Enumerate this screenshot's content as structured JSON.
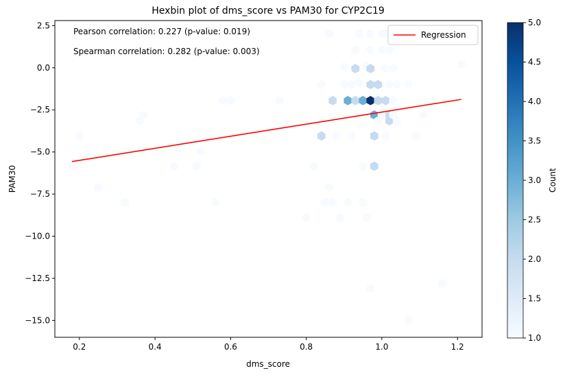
{
  "chart_data": {
    "type": "heatmap",
    "subtype": "hexbin",
    "title": "Hexbin plot of dms_score vs PAM30 for CYP2C19",
    "xlabel": "dms_score",
    "ylabel": "PAM30",
    "xlim": [
      0.135,
      1.265
    ],
    "ylim": [
      -16.0,
      2.8
    ],
    "xticks": [
      0.2,
      0.4,
      0.6,
      0.8,
      1.0,
      1.2
    ],
    "xtick_labels": [
      "0.2",
      "0.4",
      "0.6",
      "0.8",
      "1.0",
      "1.2"
    ],
    "yticks": [
      2.5,
      0.0,
      -2.5,
      -5.0,
      -7.5,
      -10.0,
      -12.5,
      -15.0
    ],
    "ytick_labels": [
      "2.5",
      "0.0",
      "−2.5",
      "−5.0",
      "−7.5",
      "−10.0",
      "−12.5",
      "−15.0"
    ],
    "annotations": [
      "Pearson correlation: 0.227 (p-value: 0.019)",
      "Spearman correlation: 0.282 (p-value: 0.003)"
    ],
    "legend": {
      "entries": [
        "Regression"
      ],
      "placement": "top-right"
    },
    "regression": {
      "x": [
        0.18,
        1.21
      ],
      "y": [
        -5.57,
        -1.88
      ],
      "color": "#ff0000"
    },
    "colorbar": {
      "label": "Count",
      "range": [
        1.0,
        5.0
      ],
      "ticks": [
        1.0,
        1.5,
        2.0,
        2.5,
        3.0,
        3.5,
        4.0,
        4.5,
        5.0
      ],
      "tick_labels": [
        "1.0",
        "1.5",
        "2.0",
        "2.5",
        "3.0",
        "3.5",
        "4.0",
        "4.5",
        "5.0"
      ],
      "colormap": "Blues"
    },
    "grid": false,
    "hexbins": [
      {
        "x": 0.18,
        "y": -5.85,
        "count": 1
      },
      {
        "x": 0.2,
        "y": -4.05,
        "count": 1
      },
      {
        "x": 0.25,
        "y": -7.1,
        "count": 1
      },
      {
        "x": 0.32,
        "y": -8.0,
        "count": 1
      },
      {
        "x": 0.36,
        "y": -3.15,
        "count": 1
      },
      {
        "x": 0.37,
        "y": -2.8,
        "count": 1
      },
      {
        "x": 0.45,
        "y": -5.85,
        "count": 1
      },
      {
        "x": 0.51,
        "y": -5.85,
        "count": 1
      },
      {
        "x": 0.52,
        "y": -4.95,
        "count": 1
      },
      {
        "x": 0.56,
        "y": -8.0,
        "count": 1
      },
      {
        "x": 0.58,
        "y": -1.95,
        "count": 1
      },
      {
        "x": 0.6,
        "y": -1.95,
        "count": 1
      },
      {
        "x": 0.73,
        "y": -1.95,
        "count": 1
      },
      {
        "x": 0.8,
        "y": -8.9,
        "count": 1
      },
      {
        "x": 0.82,
        "y": -5.85,
        "count": 1
      },
      {
        "x": 0.84,
        "y": -1.0,
        "count": 1
      },
      {
        "x": 0.84,
        "y": -4.05,
        "count": 2
      },
      {
        "x": 0.85,
        "y": -8.0,
        "count": 1
      },
      {
        "x": 0.86,
        "y": 2.0,
        "count": 1
      },
      {
        "x": 0.86,
        "y": -7.1,
        "count": 1
      },
      {
        "x": 0.87,
        "y": -1.95,
        "count": 2
      },
      {
        "x": 0.87,
        "y": -8.0,
        "count": 1
      },
      {
        "x": 0.88,
        "y": -4.05,
        "count": 1
      },
      {
        "x": 0.89,
        "y": -8.9,
        "count": 1
      },
      {
        "x": 0.9,
        "y": 0.05,
        "count": 1
      },
      {
        "x": 0.9,
        "y": -1.0,
        "count": 1
      },
      {
        "x": 0.91,
        "y": -1.95,
        "count": 3
      },
      {
        "x": 0.92,
        "y": -1.0,
        "count": 1
      },
      {
        "x": 0.91,
        "y": -8.0,
        "count": 1
      },
      {
        "x": 0.92,
        "y": -4.05,
        "count": 1
      },
      {
        "x": 0.93,
        "y": 1.05,
        "count": 1
      },
      {
        "x": 0.93,
        "y": -0.05,
        "count": 2
      },
      {
        "x": 0.93,
        "y": -1.95,
        "count": 2
      },
      {
        "x": 0.93,
        "y": -2.8,
        "count": 1
      },
      {
        "x": 0.94,
        "y": 2.0,
        "count": 1
      },
      {
        "x": 0.94,
        "y": -0.9,
        "count": 1
      },
      {
        "x": 0.95,
        "y": -1.95,
        "count": 3
      },
      {
        "x": 0.95,
        "y": -5.85,
        "count": 1
      },
      {
        "x": 0.95,
        "y": -8.0,
        "count": 1
      },
      {
        "x": 0.96,
        "y": 0.05,
        "count": 1
      },
      {
        "x": 0.96,
        "y": -8.9,
        "count": 1
      },
      {
        "x": 0.97,
        "y": 2.0,
        "count": 1
      },
      {
        "x": 0.97,
        "y": -0.05,
        "count": 2
      },
      {
        "x": 0.97,
        "y": -1.0,
        "count": 2
      },
      {
        "x": 0.97,
        "y": -1.95,
        "count": 5
      },
      {
        "x": 0.97,
        "y": 1.05,
        "count": 1
      },
      {
        "x": 0.97,
        "y": -13.1,
        "count": 1
      },
      {
        "x": 0.98,
        "y": -2.8,
        "count": 3
      },
      {
        "x": 0.98,
        "y": -4.05,
        "count": 2
      },
      {
        "x": 0.98,
        "y": -5.85,
        "count": 2
      },
      {
        "x": 0.99,
        "y": -1.0,
        "count": 2
      },
      {
        "x": 0.99,
        "y": -1.95,
        "count": 2
      },
      {
        "x": 0.99,
        "y": -3.15,
        "count": 1
      },
      {
        "x": 1.0,
        "y": 2.0,
        "count": 1
      },
      {
        "x": 1.0,
        "y": 1.05,
        "count": 1
      },
      {
        "x": 1.0,
        "y": -2.8,
        "count": 1
      },
      {
        "x": 1.01,
        "y": 2.0,
        "count": 1
      },
      {
        "x": 1.01,
        "y": -1.95,
        "count": 2
      },
      {
        "x": 1.01,
        "y": -0.05,
        "count": 1
      },
      {
        "x": 1.01,
        "y": -4.05,
        "count": 1
      },
      {
        "x": 1.02,
        "y": 1.05,
        "count": 1
      },
      {
        "x": 1.02,
        "y": -1.0,
        "count": 1
      },
      {
        "x": 1.02,
        "y": -3.15,
        "count": 2
      },
      {
        "x": 1.02,
        "y": -2.8,
        "count": 2
      },
      {
        "x": 1.03,
        "y": 2.0,
        "count": 1
      },
      {
        "x": 1.03,
        "y": -0.05,
        "count": 1
      },
      {
        "x": 1.03,
        "y": -1.95,
        "count": 1
      },
      {
        "x": 1.03,
        "y": -2.8,
        "count": 1
      },
      {
        "x": 1.04,
        "y": -1.0,
        "count": 1
      },
      {
        "x": 1.04,
        "y": -3.15,
        "count": 1
      },
      {
        "x": 1.07,
        "y": -1.0,
        "count": 1
      },
      {
        "x": 1.07,
        "y": -15.0,
        "count": 1
      },
      {
        "x": 1.09,
        "y": -4.05,
        "count": 1
      },
      {
        "x": 1.11,
        "y": -2.8,
        "count": 1
      },
      {
        "x": 1.16,
        "y": -12.8,
        "count": 1
      },
      {
        "x": 1.21,
        "y": 0.2,
        "count": 1
      }
    ]
  }
}
